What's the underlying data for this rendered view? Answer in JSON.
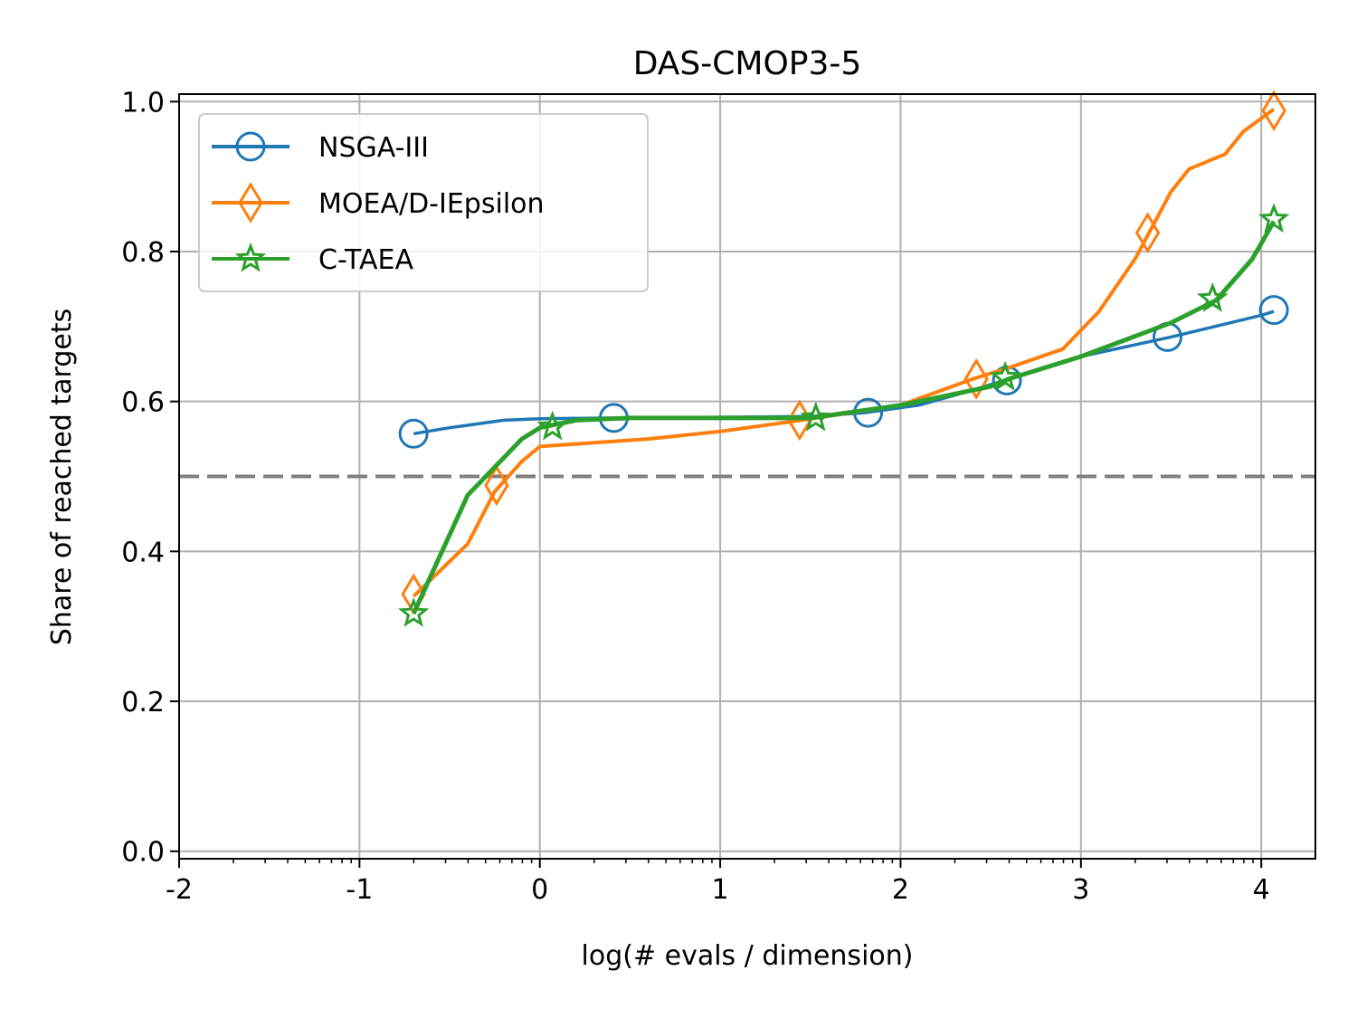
{
  "chart_data": {
    "type": "line",
    "title": "DAS-CMOP3-5",
    "xlabel": "log(# evals / dimension)",
    "ylabel": "Share of reached targets",
    "xlim": [
      -2,
      4.3
    ],
    "ylim": [
      -0.01,
      1.01
    ],
    "xticks": [
      -2,
      -1,
      0,
      1,
      2,
      3,
      4
    ],
    "xtick_labels": [
      "-2",
      "-1",
      "0",
      "1",
      "2",
      "3",
      "4"
    ],
    "yticks": [
      0.0,
      0.2,
      0.4,
      0.6,
      0.8,
      1.0
    ],
    "ytick_labels": [
      "0.0",
      "0.2",
      "0.4",
      "0.6",
      "0.8",
      "1.0"
    ],
    "grid": true,
    "legend_position": "top-left",
    "reference_line": {
      "y": 0.5,
      "style": "dashed",
      "color": "#808080"
    },
    "series": [
      {
        "name": "NSGA-III",
        "color": "#1f77b4",
        "marker": "circle",
        "x": [
          -0.7,
          -0.5,
          -0.2,
          0.0,
          0.4,
          1.0,
          1.5,
          1.8,
          2.1,
          2.4,
          2.6,
          3.0,
          3.5,
          4.0,
          4.07
        ],
        "y": [
          0.557,
          0.565,
          0.575,
          0.577,
          0.578,
          0.579,
          0.58,
          0.585,
          0.595,
          0.615,
          0.63,
          0.66,
          0.686,
          0.715,
          0.72
        ],
        "markers_x": [
          -0.7,
          0.41,
          1.82,
          2.59,
          3.48,
          4.07
        ],
        "markers_y": [
          0.557,
          0.578,
          0.585,
          0.628,
          0.686,
          0.722
        ]
      },
      {
        "name": "MOEA/D-IEpsilon",
        "color": "#ff7f0e",
        "marker": "diamond",
        "x": [
          -0.7,
          -0.4,
          -0.25,
          -0.1,
          0.0,
          0.3,
          0.6,
          1.0,
          1.45,
          2.0,
          2.4,
          2.6,
          2.9,
          3.1,
          3.3,
          3.5,
          3.6,
          3.8,
          3.9,
          4.07
        ],
        "y": [
          0.34,
          0.41,
          0.48,
          0.52,
          0.54,
          0.545,
          0.55,
          0.56,
          0.575,
          0.595,
          0.63,
          0.645,
          0.67,
          0.72,
          0.79,
          0.88,
          0.91,
          0.93,
          0.96,
          0.99
        ],
        "markers_x": [
          -0.7,
          -0.24,
          1.44,
          2.42,
          3.37,
          4.07
        ],
        "markers_y": [
          0.343,
          0.488,
          0.575,
          0.63,
          0.825,
          0.988
        ]
      },
      {
        "name": "C-TAEA",
        "color": "#2ca02c",
        "marker": "star",
        "x": [
          -0.7,
          -0.4,
          -0.2,
          -0.1,
          0.0,
          0.2,
          0.5,
          1.0,
          1.5,
          2.0,
          2.5,
          2.6,
          3.0,
          3.5,
          3.75,
          3.95,
          4.07
        ],
        "y": [
          0.317,
          0.475,
          0.525,
          0.55,
          0.565,
          0.575,
          0.578,
          0.578,
          0.578,
          0.595,
          0.62,
          0.63,
          0.66,
          0.705,
          0.735,
          0.79,
          0.84
        ],
        "markers_x": [
          -0.7,
          0.07,
          1.53,
          2.58,
          3.73,
          4.07
        ],
        "markers_y": [
          0.317,
          0.566,
          0.578,
          0.632,
          0.737,
          0.843
        ]
      }
    ]
  }
}
